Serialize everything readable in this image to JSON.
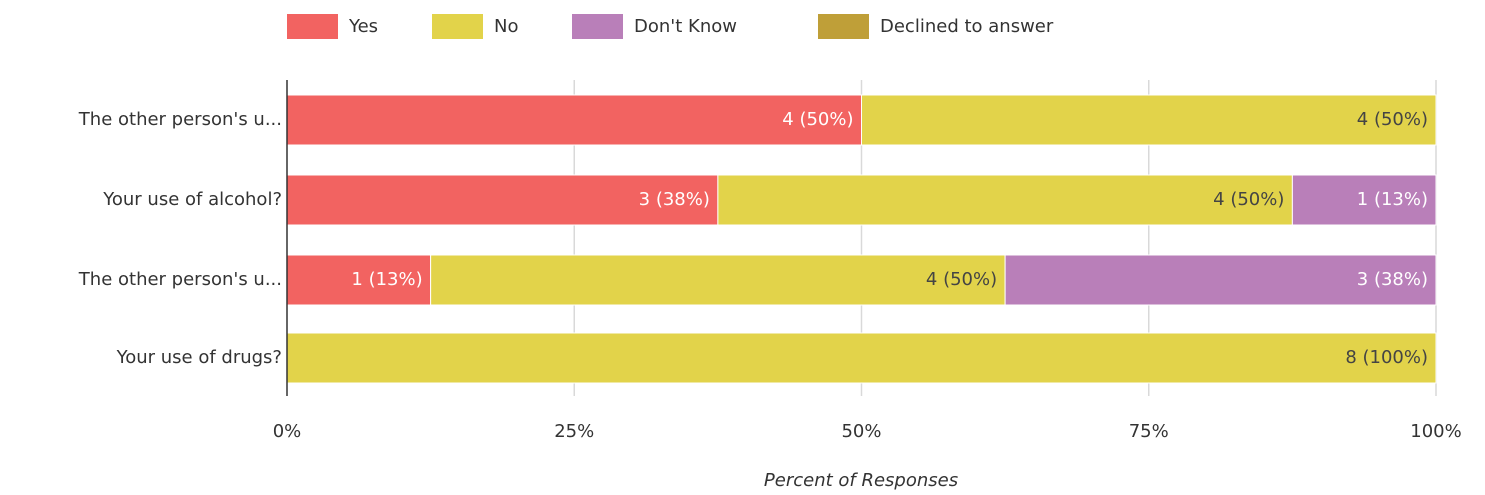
{
  "chart_data": {
    "type": "stacked-bar-horizontal",
    "categories": [
      "The other person's u...",
      "Your use of alcohol?",
      "The other person's u...",
      "Your use of drugs?"
    ],
    "series": [
      {
        "name": "Yes",
        "color": "#f26361",
        "values": [
          50,
          37.5,
          12.5,
          0
        ],
        "value_labels": [
          "4 (50%)",
          "3 (38%)",
          "1 (13%)",
          null
        ]
      },
      {
        "name": "No",
        "color": "#e2d34a",
        "values": [
          50,
          50,
          50,
          100
        ],
        "value_labels": [
          "4 (50%)",
          "4 (50%)",
          "4 (50%)",
          "8 (100%)"
        ]
      },
      {
        "name": "Don't Know",
        "color": "#b97fb9",
        "values": [
          0,
          12.5,
          37.5,
          0
        ],
        "value_labels": [
          null,
          "1 (13%)",
          "3 (38%)",
          null
        ]
      },
      {
        "name": "Declined to answer",
        "color": "#bf9f38",
        "values": [
          0,
          0,
          0,
          0
        ],
        "value_labels": [
          null,
          null,
          null,
          null
        ]
      }
    ],
    "xlim": [
      0,
      100
    ],
    "xticks": [
      {
        "value": 0,
        "label": "0%"
      },
      {
        "value": 25,
        "label": "25%"
      },
      {
        "value": 50,
        "label": "50%"
      },
      {
        "value": 75,
        "label": "75%"
      },
      {
        "value": 100,
        "label": "100%"
      }
    ],
    "xlabel": "Percent of Responses",
    "grid": true,
    "legend": "top"
  }
}
